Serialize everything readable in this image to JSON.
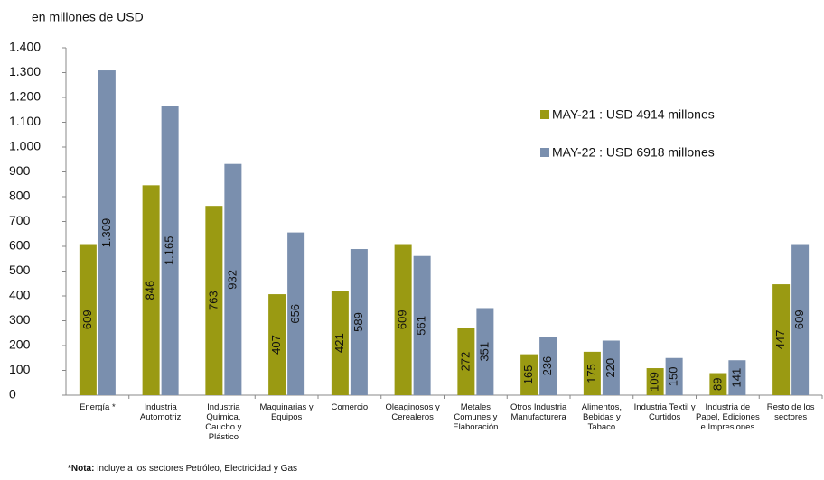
{
  "chart_data": {
    "type": "bar",
    "ylabel": "en millones de USD",
    "categories": [
      "Energía *",
      "Industria Automotriz",
      "Industria Química, Caucho y Plástico",
      "Maquinarias y Equipos",
      "Comercio",
      "Oleaginosos y Cerealeros",
      "Metales Comunes y Elaboración",
      "Otros Industria Manufacturera",
      "Alimentos, Bebidas y Tabaco",
      "Industria Textil y Curtidos",
      "Industria de Papel, Ediciones e Impresiones",
      "Resto de los sectores"
    ],
    "series": [
      {
        "name": "MAY-21 : USD 4914 millones",
        "color": "#9a9a12",
        "values": [
          609,
          846,
          763,
          407,
          421,
          609,
          272,
          165,
          175,
          109,
          89,
          447
        ]
      },
      {
        "name": "MAY-22 : USD 6918 millones",
        "color": "#7a8fae",
        "values": [
          1309,
          1165,
          932,
          656,
          589,
          561,
          351,
          236,
          220,
          150,
          141,
          609
        ],
        "value_labels": [
          "1.309",
          "1.165",
          "932",
          "656",
          "589",
          "561",
          "351",
          "236",
          "220",
          "150",
          "141",
          "609"
        ]
      }
    ],
    "ylim": [
      0,
      1400
    ],
    "yticks": [
      0,
      100,
      200,
      300,
      400,
      500,
      600,
      700,
      800,
      900,
      {
        "value": 1000,
        "label": "1.000"
      },
      {
        "value": 1100,
        "label": "1.100"
      },
      {
        "value": 1200,
        "label": "1.200"
      },
      {
        "value": 1300,
        "label": "1.300"
      },
      {
        "value": 1400,
        "label": "1.400"
      }
    ],
    "legend": "right",
    "note": {
      "label": "*Nota:",
      "text": " incluye a los sectores Petróleo, Electricidad y Gas"
    }
  }
}
